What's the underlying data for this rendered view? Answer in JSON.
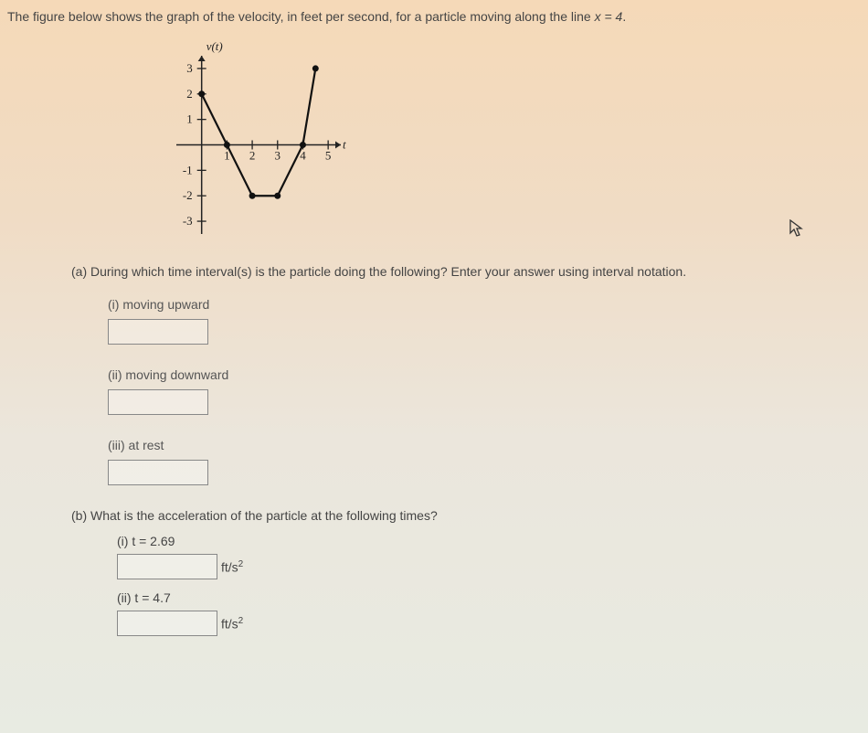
{
  "prompt": {
    "text_before": "The figure below shows the graph of the velocity, in feet per second, for a particle moving along the line ",
    "equation": "x = 4",
    "text_after": "."
  },
  "chart": {
    "type": "line",
    "ylabel": "v(t)",
    "xlabel": "t",
    "xlim": [
      -1,
      5.5
    ],
    "ylim": [
      -3.5,
      3.5
    ],
    "xticks": [
      1,
      2,
      3,
      4,
      5
    ],
    "yticks": [
      -3,
      -2,
      -1,
      1,
      2,
      3
    ],
    "axis_color": "#222222",
    "curve_color": "#111111",
    "point_color": "#111111",
    "background_color": "transparent",
    "tick_length": 5,
    "line_width": 2.2,
    "point_radius": 3.5,
    "label_fontsize": 13,
    "data_points": [
      {
        "x": 0,
        "y": 2
      },
      {
        "x": 1,
        "y": 0
      },
      {
        "x": 2,
        "y": -2
      },
      {
        "x": 3,
        "y": -2
      },
      {
        "x": 4,
        "y": 0
      },
      {
        "x": 4.5,
        "y": 3
      }
    ],
    "filled_points": [
      {
        "x": 0,
        "y": 2
      },
      {
        "x": 1,
        "y": 0
      },
      {
        "x": 2,
        "y": -2
      },
      {
        "x": 3,
        "y": -2
      },
      {
        "x": 4,
        "y": 0
      },
      {
        "x": 4.5,
        "y": 3
      }
    ]
  },
  "partA": {
    "prompt": "(a) During which time interval(s) is the particle doing the following? Enter your answer using interval notation.",
    "items": [
      {
        "label": "(i) moving upward"
      },
      {
        "label": "(ii) moving downward"
      },
      {
        "label": "(iii) at rest"
      }
    ]
  },
  "partB": {
    "prompt": "(b) What is the acceleration of the particle at the following times?",
    "items": [
      {
        "label": "(i) t = 2.69",
        "unit_base": "ft/s",
        "unit_exp": "2"
      },
      {
        "label": "(ii) t = 4.7",
        "unit_base": "ft/s",
        "unit_exp": "2"
      }
    ]
  }
}
